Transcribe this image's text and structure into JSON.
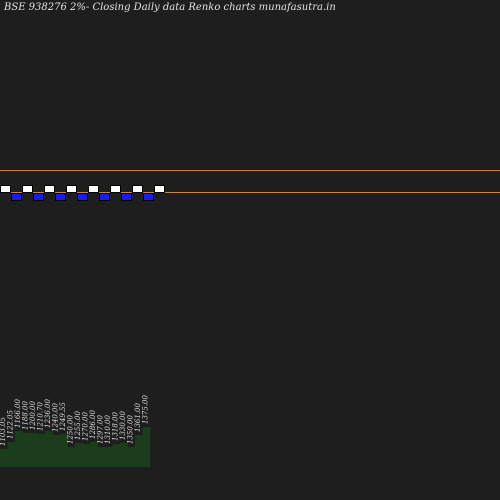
{
  "title": "BSE 938276  2%-  Closing Daily data  Renko  charts munafasutra.in",
  "colors": {
    "background": "#1e1e1e",
    "up_brick": "#ffffff",
    "down_brick": "#1a1aff",
    "level_line": "#d2821e",
    "volume_fill": "#1c3d1c",
    "volume_edge": "#2f6a2f",
    "brick_border": "#000000"
  },
  "chart_data": {
    "type": "renko",
    "title": "BSE 938276  2%-  Closing Daily data  Renko  charts munafasutra.in",
    "brick_percent": 2,
    "bricks": [
      {
        "dir": "up",
        "level": 0
      },
      {
        "dir": "down",
        "level": -1
      },
      {
        "dir": "up",
        "level": 0
      },
      {
        "dir": "down",
        "level": -1
      },
      {
        "dir": "up",
        "level": 0
      },
      {
        "dir": "down",
        "level": -1
      },
      {
        "dir": "up",
        "level": 0
      },
      {
        "dir": "down",
        "level": -1
      },
      {
        "dir": "up",
        "level": 0
      },
      {
        "dir": "down",
        "level": -1
      },
      {
        "dir": "up",
        "level": 0
      },
      {
        "dir": "down",
        "level": -1
      },
      {
        "dir": "up",
        "level": 0
      },
      {
        "dir": "down",
        "level": -1
      },
      {
        "dir": "up",
        "level": 0
      }
    ],
    "levels_y": [
      1,
      2
    ],
    "volume_labels": [
      "1103.05",
      "1122.05",
      "1166.00",
      "1188.00",
      "1200.00",
      "1210.70",
      "1236.00",
      "1240.00",
      "1249.55",
      "1250.00",
      "1255.00",
      "1270.00",
      "1286.00",
      "1297.00",
      "1310.00",
      "1318.00",
      "1330.00",
      "1350.00",
      "1361.00",
      "1375.00"
    ],
    "volume": [
      18,
      25,
      36,
      34,
      34,
      33,
      36,
      32,
      33,
      20,
      24,
      23,
      25,
      20,
      20,
      23,
      24,
      20,
      32,
      40
    ]
  }
}
